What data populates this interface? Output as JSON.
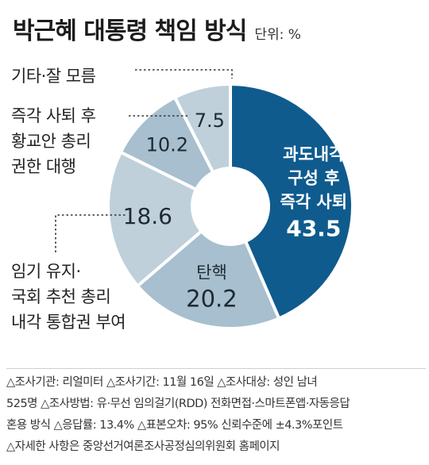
{
  "title": "박근혜 대통령 책임 방식",
  "unit": "단위: %",
  "chart_data": {
    "type": "pie",
    "title": "박근혜 대통령 책임 방식",
    "unit": "%",
    "start_angle_deg": 0,
    "direction": "clockwise",
    "donut": true,
    "slices": [
      {
        "label": [
          "과도내각",
          "구성 후",
          "즉각 사퇴"
        ],
        "value": 43.5,
        "color": "#0f5b8e",
        "text_color": "#ffffff"
      },
      {
        "label": [
          "탄핵"
        ],
        "value": 20.2,
        "color": "#a7bfce",
        "text_color": "#1e2a33"
      },
      {
        "label": [
          "임기 유지·",
          "국회 추천 총리",
          "내각 통합권 부여"
        ],
        "value": 18.6,
        "color": "#bfd0db",
        "text_color": "#1e2a33"
      },
      {
        "label": [
          "즉각 사퇴 후",
          "황교안 총리",
          "권한 대행"
        ],
        "value": 10.2,
        "color": "#a7bfce",
        "text_color": "#1e2a33"
      },
      {
        "label": [
          "기타·잘 모름"
        ],
        "value": 7.5,
        "color": "#bfd0db",
        "text_color": "#1e2a33"
      }
    ]
  },
  "notes": [
    "△조사기관: 리얼미터 △조사기간: 11월 16일 △조사대상: 성인 남녀",
    "525명 △조사방법: 유·무선 임의걸기(RDD) 전화면접·스마트폰앱·자동응답",
    "혼용 방식 △응답률: 13.4% △표본오차: 95% 신뢰수준에 ±4.3%포인트",
    "△자세한 사항은 중앙선거여론조사공정심의위원회 홈페이지"
  ]
}
